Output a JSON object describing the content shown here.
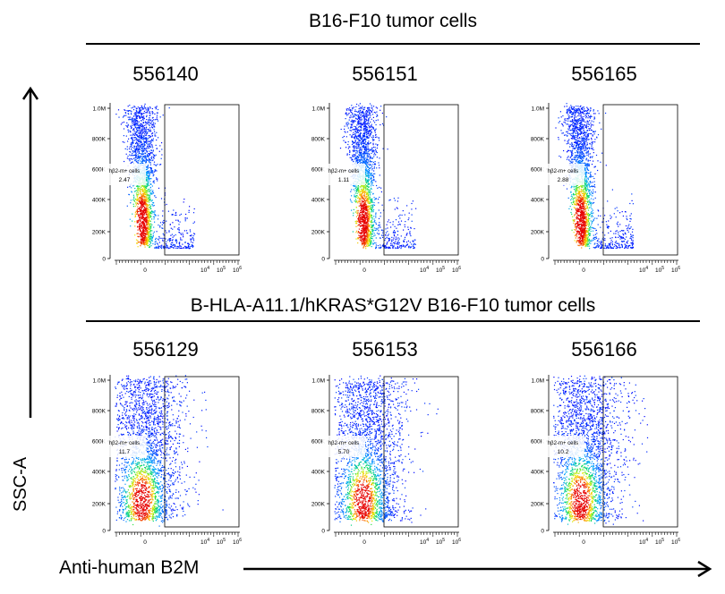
{
  "axes": {
    "x_label": "Anti-human B2M",
    "y_label": "SSC-A",
    "y_ticks": [
      "1.0M",
      "800K",
      "600K",
      "400K",
      "200K",
      "0"
    ],
    "x_ticks": [
      {
        "label": "0",
        "exp": ""
      },
      {
        "label": "10",
        "exp": "4"
      },
      {
        "label": "10",
        "exp": "5"
      },
      {
        "label": "10",
        "exp": "6"
      }
    ]
  },
  "gate_label": "hβ2-m+ cells",
  "groups": [
    {
      "title": "B16-F10 tumor cells"
    },
    {
      "title": "B-HLA-A11.1/hKRAS*G12V B16-F10 tumor cells"
    }
  ],
  "chart_data": {
    "type": "scatter",
    "xlabel": "Anti-human B2M",
    "ylabel": "SSC-A",
    "panels": [
      {
        "group": "B16-F10 tumor cells",
        "sample": "556140",
        "gate_percent": "2.47",
        "spread": "narrow"
      },
      {
        "group": "B16-F10 tumor cells",
        "sample": "556151",
        "gate_percent": "1.11",
        "spread": "narrow"
      },
      {
        "group": "B16-F10 tumor cells",
        "sample": "556165",
        "gate_percent": "2.88",
        "spread": "narrow"
      },
      {
        "group": "B-HLA-A11.1/hKRAS*G12V B16-F10 tumor cells",
        "sample": "556129",
        "gate_percent": "11.7",
        "spread": "wide"
      },
      {
        "group": "B-HLA-A11.1/hKRAS*G12V B16-F10 tumor cells",
        "sample": "556153",
        "gate_percent": "5.70",
        "spread": "wide"
      },
      {
        "group": "B-HLA-A11.1/hKRAS*G12V B16-F10 tumor cells",
        "sample": "556166",
        "gate_percent": "10.2",
        "spread": "wide"
      }
    ]
  }
}
